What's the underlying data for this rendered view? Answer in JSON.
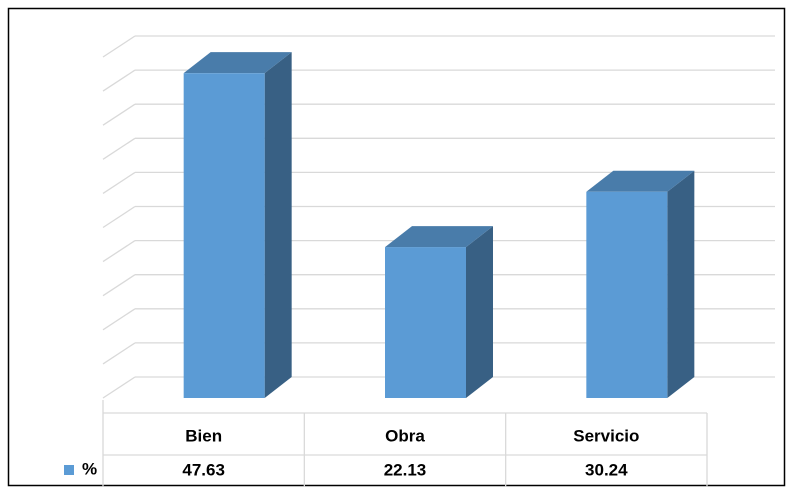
{
  "chart_data": {
    "type": "bar3d",
    "categories": [
      "Bien",
      "Obra",
      "Servicio"
    ],
    "series": [
      {
        "name": "%",
        "color": "#5b9bd5",
        "values": [
          47.63,
          22.13,
          30.24
        ]
      }
    ],
    "ylim": [
      0,
      50
    ],
    "yticks": [
      0,
      5,
      10,
      15,
      20,
      25,
      30,
      35,
      40,
      45,
      50
    ],
    "grid": true
  }
}
